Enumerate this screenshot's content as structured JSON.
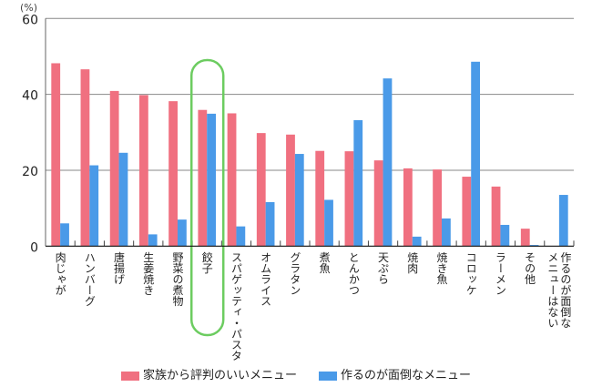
{
  "chart_data": {
    "type": "bar",
    "unit_label": "(%)",
    "ylim": [
      0,
      60
    ],
    "yticks": [
      0,
      20,
      40,
      60
    ],
    "grid": true,
    "categories": [
      "肉じゃが",
      "ハンバーグ",
      "唐揚げ",
      "生姜焼き",
      "野菜の煮物",
      "餃子",
      "スパゲッティ・パスタ",
      "オムライス",
      "グラタン",
      "煮魚",
      "とんかつ",
      "天ぷら",
      "焼肉",
      "焼き魚",
      "コロッケ",
      "ラーメン",
      "その他",
      "作るのが面倒なメニューはない"
    ],
    "highlight_category": "餃子",
    "series": [
      {
        "name": "家族から評判のいいメニュー",
        "color": "#f07080",
        "values": [
          48.2,
          46.6,
          40.9,
          39.8,
          38.2,
          35.9,
          35.0,
          29.8,
          29.4,
          25.1,
          25.0,
          22.6,
          20.5,
          20.2,
          18.3,
          15.7,
          4.6,
          0
        ]
      },
      {
        "name": "作るのが面倒なメニュー",
        "color": "#4a9ae8",
        "values": [
          6.0,
          21.3,
          24.6,
          3.1,
          7.0,
          34.9,
          5.2,
          11.6,
          24.3,
          12.2,
          33.2,
          44.2,
          2.5,
          7.3,
          48.6,
          5.6,
          0.3,
          13.5
        ]
      }
    ],
    "legend_position": "bottom"
  }
}
